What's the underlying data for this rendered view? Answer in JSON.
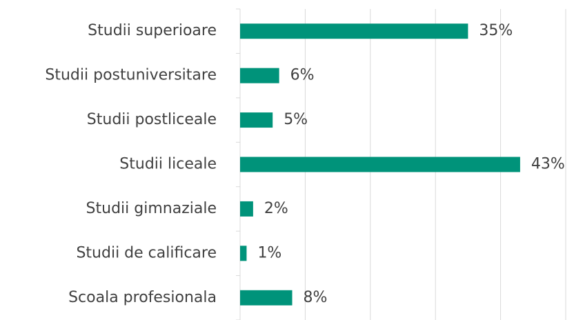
{
  "chart_data": {
    "type": "bar",
    "orientation": "horizontal",
    "categories": [
      "Studii superioare",
      "Studii postuniversitare",
      "Studii postliceale",
      "Studii liceale",
      "Studii gimnaziale",
      "Studii de calificare",
      "Scoala profesionala"
    ],
    "values": [
      35,
      6,
      5,
      43,
      2,
      1,
      8
    ],
    "value_labels": [
      "35%",
      "6%",
      "5%",
      "43%",
      "2%",
      "1%",
      "8%"
    ],
    "color": "#00937a",
    "xlim": [
      0,
      50
    ],
    "xticks": [
      0,
      10,
      20,
      30,
      40,
      50
    ],
    "grid": true
  }
}
